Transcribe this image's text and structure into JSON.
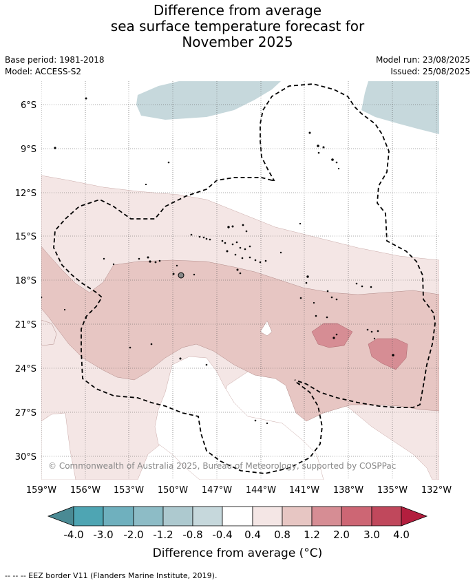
{
  "title": {
    "line1": "Difference from average",
    "line2": "sea surface temperature forecast for",
    "line3": "November 2025"
  },
  "meta": {
    "base_period": "Base period: 1981-2018",
    "model": "Model: ACCESS-S2",
    "model_run": "Model run: 23/08/2025",
    "issued": "Issued: 25/08/2025"
  },
  "map": {
    "lat_labels": [
      "6°S",
      "9°S",
      "12°S",
      "15°S",
      "18°S",
      "21°S",
      "24°S",
      "27°S",
      "30°S"
    ],
    "lon_labels": [
      "159°W",
      "156°W",
      "153°W",
      "150°W",
      "147°W",
      "144°W",
      "141°W",
      "138°W",
      "135°W",
      "132°W"
    ],
    "copyright": "© Commonwealth of Australia 2025, Bureau of Meteorology, supported by COSPPac",
    "colors": {
      "m04_m08": "#c6d8dc",
      "p04_p08": "#f4e6e5",
      "p08_p12": "#e7c6c3",
      "p12_p20": "#d68d94",
      "eez": "#000000"
    }
  },
  "colorbar": {
    "tick_labels": [
      "-4.0",
      "-3.0",
      "-2.0",
      "-1.2",
      "-0.8",
      "-0.4",
      "0.4",
      "0.8",
      "1.2",
      "2.0",
      "3.0",
      "4.0"
    ],
    "colors": [
      "#4a8a94",
      "#4ea5b3",
      "#6fb0be",
      "#8dbcc6",
      "#adc9cf",
      "#c6d8dc",
      "#ffffff",
      "#f4e6e5",
      "#e7c6c3",
      "#d68d94",
      "#cd6674",
      "#c0485c",
      "#b31e3e"
    ],
    "title": "Difference from average (°C)"
  },
  "footer": "--  --  -- EEZ border V11 (Flanders Marine Institute, 2019)."
}
